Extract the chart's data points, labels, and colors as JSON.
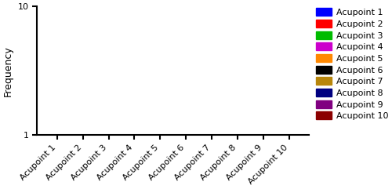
{
  "categories": [
    "Acupoint 1",
    "Acupoint 2",
    "Acupoint 3",
    "Acupoint 4",
    "Acupoint 5",
    "Acupoint 6",
    "Acupoint 7",
    "Acupoint 8",
    "Acupoint 9",
    "Acupoint 10"
  ],
  "values": [
    1,
    1,
    1,
    1,
    1,
    1,
    1,
    1,
    1,
    1
  ],
  "bar_colors": [
    "#0000FF",
    "#FF0000",
    "#00BB00",
    "#CC00CC",
    "#FF8800",
    "#000000",
    "#B8860B",
    "#000080",
    "#800080",
    "#8B0000"
  ],
  "ylabel": "Frequency",
  "ylim_log": [
    1,
    10
  ],
  "background_color": "#ffffff",
  "legend_labels": [
    "Acupoint 1",
    "Acupoint 2",
    "Acupoint 3",
    "Acupoint 4",
    "Acupoint 5",
    "Acupoint 6",
    "Acupoint 7",
    "Acupoint 8",
    "Acupoint 9",
    "Acupoint 10"
  ],
  "tick_fontsize": 8,
  "ylabel_fontsize": 9,
  "legend_fontsize": 8,
  "spine_linewidth": 1.5,
  "fig_width": 5.0,
  "fig_height": 2.41
}
